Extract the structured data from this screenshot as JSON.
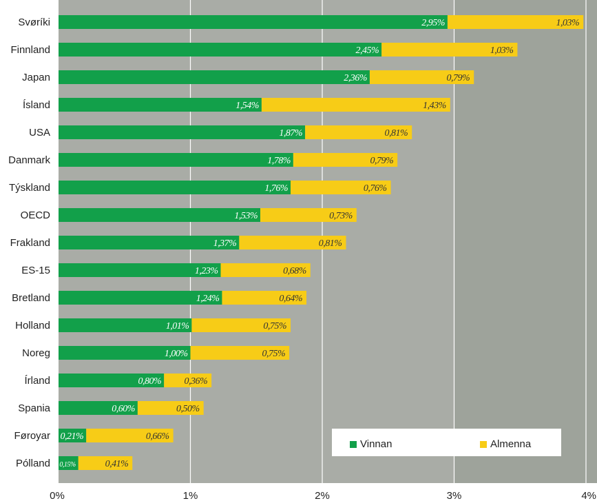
{
  "chart_data": {
    "type": "bar",
    "orientation": "horizontal",
    "stacked": true,
    "categories": [
      "Svøríki",
      "Finnland",
      "Japan",
      "Ísland",
      "USA",
      "Danmark",
      "Týskland",
      "OECD",
      "Frakland",
      "ES-15",
      "Bretland",
      "Holland",
      "Noreg",
      "Írland",
      "Spania",
      "Føroyar",
      "Pólland"
    ],
    "series": [
      {
        "name": "Vinnan",
        "color": "#12a04a",
        "values": [
          2.95,
          2.45,
          2.36,
          1.54,
          1.87,
          1.78,
          1.76,
          1.53,
          1.37,
          1.23,
          1.24,
          1.01,
          1.0,
          0.8,
          0.6,
          0.21,
          0.15
        ],
        "labels": [
          "2,95%",
          "2,45%",
          "2,36%",
          "1,54%",
          "1,87%",
          "1,78%",
          "1,76%",
          "1,53%",
          "1,37%",
          "1,23%",
          "1,24%",
          "1,01%",
          "1,00%",
          "0,80%",
          "0,60%",
          "0,21%",
          "0,15%"
        ]
      },
      {
        "name": "Almenna",
        "color": "#f7cc17",
        "values": [
          1.03,
          1.03,
          0.79,
          1.43,
          0.81,
          0.79,
          0.76,
          0.73,
          0.81,
          0.68,
          0.64,
          0.75,
          0.75,
          0.36,
          0.5,
          0.66,
          0.41
        ],
        "labels": [
          "1,03%",
          "1,03%",
          "0,79%",
          "1,43%",
          "0,81%",
          "0,79%",
          "0,76%",
          "0,73%",
          "0,81%",
          "0,68%",
          "0,64%",
          "0,75%",
          "0,75%",
          "0,36%",
          "0,50%",
          "0,66%",
          "0,41%"
        ]
      }
    ],
    "xticks": [
      "0%",
      "1%",
      "2%",
      "3%",
      "4%"
    ],
    "xlim": [
      0,
      4
    ],
    "grid": true,
    "background_color": "#a9aca6",
    "legend_position": "bottom-right"
  }
}
